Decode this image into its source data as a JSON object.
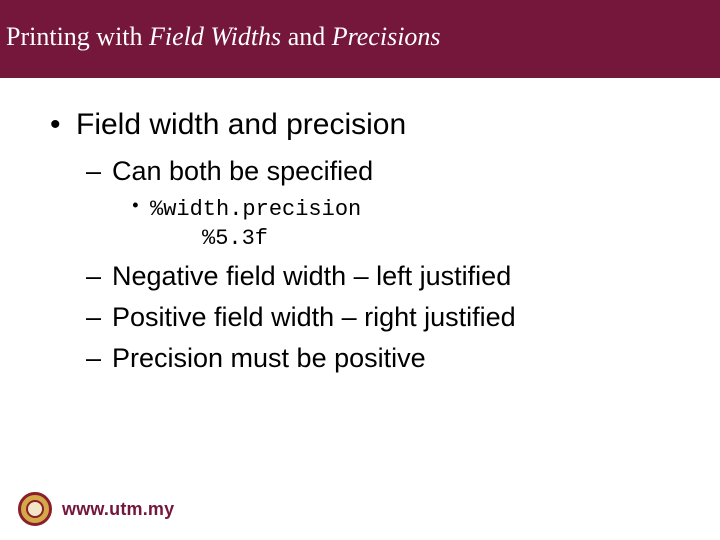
{
  "colors": {
    "title_bg": "#75163b",
    "title_text": "#ffffff",
    "body_text": "#000000",
    "footer_text": "#75163b",
    "page_bg": "#ffffff"
  },
  "title": {
    "part1": "Printing with ",
    "italic1": "Field Widths",
    "part2": " and ",
    "italic2": "Precisions"
  },
  "content": {
    "l1": "Field width and precision",
    "l2a": "Can both be specified",
    "l3a": "%width.precision",
    "l4a": "%5.3f",
    "l2b": "Negative field width – left justified",
    "l2c": "Positive field width – right justified",
    "l2d": "Precision must be positive"
  },
  "footer": {
    "url": "www.utm.my"
  }
}
